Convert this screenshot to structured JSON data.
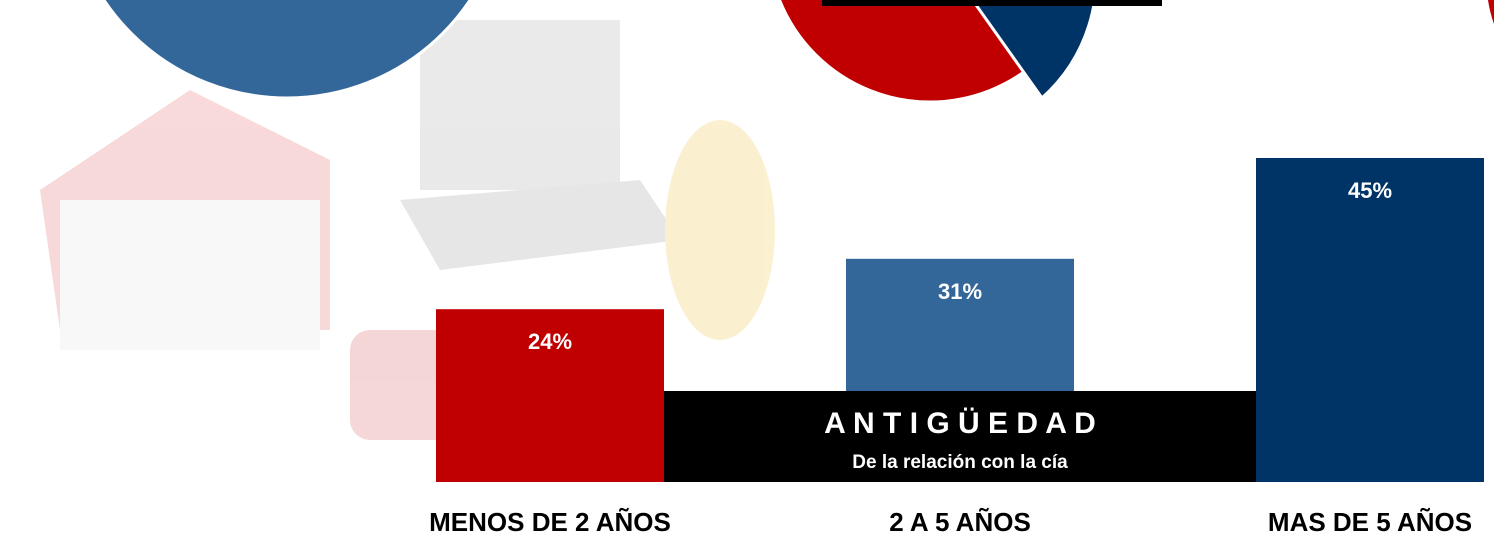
{
  "chart_data": {
    "type": "bar",
    "title": "A N T I G Ü E D A D",
    "subtitle": "De la relación con la cía",
    "categories": [
      "MENOS DE 2 AÑOS",
      "2 A 5 AÑOS",
      "MAS DE 5 AÑOS"
    ],
    "values": [
      24,
      31,
      45
    ],
    "value_labels": [
      "24%",
      "31%",
      "45%"
    ],
    "colors": [
      "#c00000",
      "#336699",
      "#003366"
    ]
  }
}
